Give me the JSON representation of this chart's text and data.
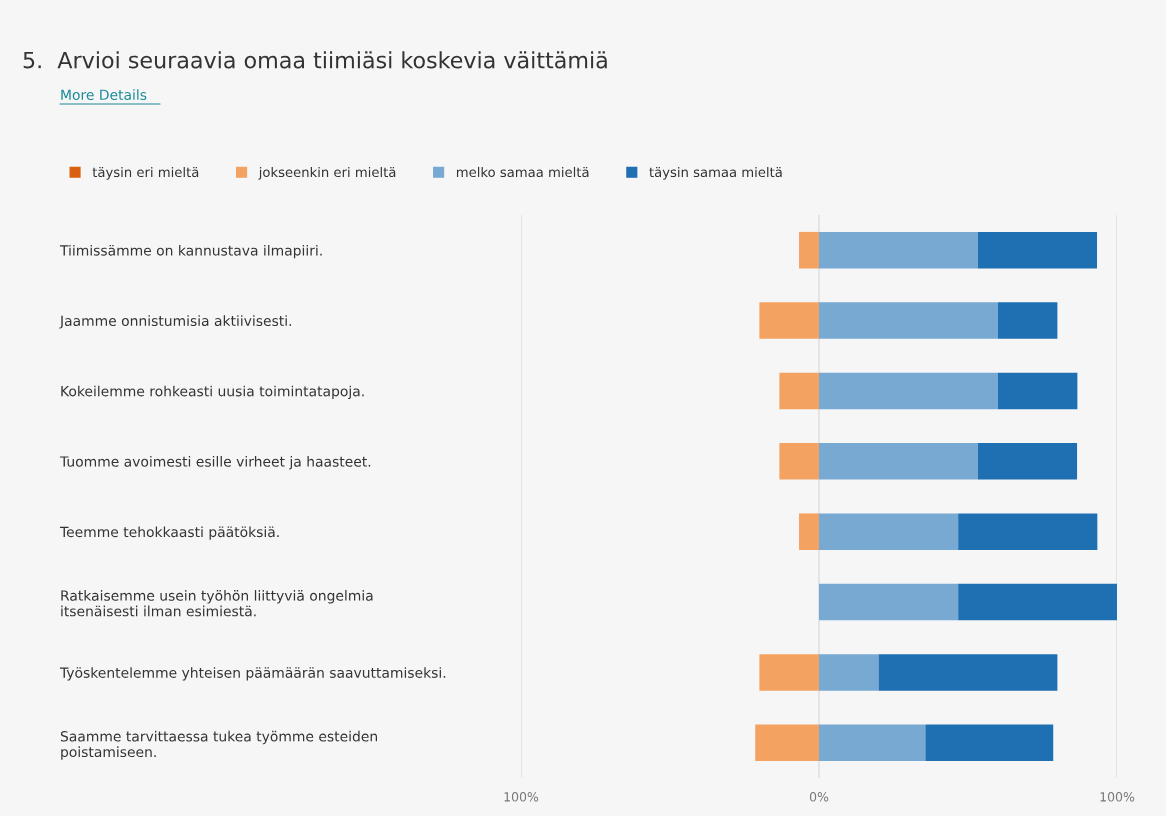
{
  "chart_data": {
    "type": "bar",
    "orientation": "horizontal",
    "stacked": true,
    "title": "5.  Arvioi seuraavia omaa tiimiäsi koskevia väittämiä",
    "annotations": [
      "More Details"
    ],
    "categories": [
      "Tiimissämme on kannustava ilmapiiri.",
      "Jaamme onnistumisia aktiivisesti.",
      "Kokeilemme rohkeasti uusia toimintatapoja.",
      "Tuomme avoimesti esille virheet ja haasteet.",
      "Teemme tehokkaasti päätöksiä.",
      "Ratkaisemme usein työhön liittyviä ongelmia\nitsenäisesti ilman esimiestä.",
      "Työskentelemme yhteisen päämäärän saavuttamiseksi.",
      "Saamme tarvittaessa tukea työmme esteiden\npoistamiseen."
    ],
    "series": [
      {
        "name": "täysin eri mieltä",
        "color": "#d9600e",
        "values": [
          0,
          0,
          0,
          0,
          0,
          0,
          0,
          0
        ]
      },
      {
        "name": "jokseenkin eri mieltä",
        "color": "#f4a261",
        "values": [
          -6.7,
          -20,
          -13.3,
          -13.3,
          -6.7,
          0,
          -20,
          -21.4
        ]
      },
      {
        "name": "melko samaa mieltä",
        "color": "#78a9d3",
        "values": [
          53.3,
          60,
          60,
          53.3,
          46.7,
          46.7,
          20,
          35.7
        ]
      },
      {
        "name": "täysin samaa mieltä",
        "color": "#1f6fb3",
        "values": [
          40,
          20,
          26.7,
          33.3,
          46.7,
          53.3,
          60,
          42.9
        ]
      }
    ],
    "xlim": [
      -100,
      100
    ],
    "xticks": [
      {
        "value": -100,
        "label": "100%"
      },
      {
        "value": 0,
        "label": "0%"
      },
      {
        "value": 100,
        "label": "100%"
      }
    ],
    "grid": "x",
    "legend": "top left"
  }
}
